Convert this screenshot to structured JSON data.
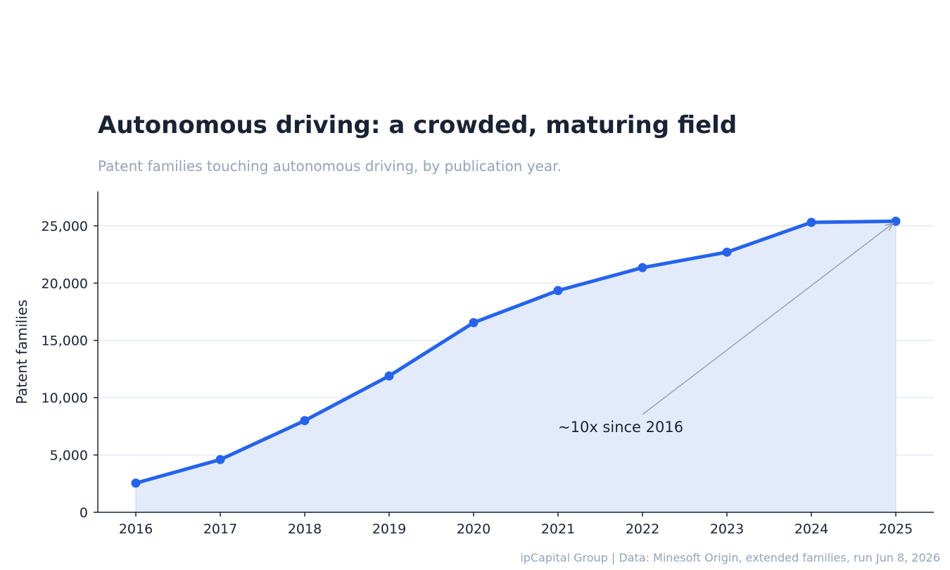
{
  "chart_data": {
    "type": "line",
    "title": "Autonomous driving: a crowded, maturing field",
    "subtitle": "Patent families touching autonomous driving, by publication year.",
    "xlabel": "",
    "ylabel": "Patent families",
    "x": [
      "2016",
      "2017",
      "2018",
      "2019",
      "2020",
      "2021",
      "2022",
      "2023",
      "2024",
      "2025"
    ],
    "series": [
      {
        "values": [
          2550,
          4600,
          8000,
          11900,
          16550,
          19350,
          21350,
          22700,
          25300,
          25400
        ]
      }
    ],
    "ylim": [
      0,
      28000
    ],
    "yticks": [
      0,
      5000,
      10000,
      15000,
      20000,
      25000
    ],
    "ytick_labels": [
      "0",
      "5,000",
      "10,000",
      "15,000",
      "20,000",
      "25,000"
    ],
    "grid": "horizontal",
    "fill_under_line": true,
    "annotation": {
      "text": "~10x since 2016",
      "points_to": "2025"
    },
    "colors": {
      "line": "#2563eb",
      "fill": "#e2eafa",
      "grid": "#e5e9f2",
      "axis": "#1a2233",
      "arrow": "#94a3b8"
    }
  },
  "footer": "ipCapital Group | Data: Minesoft Origin, extended families, run Jun 8, 2026"
}
